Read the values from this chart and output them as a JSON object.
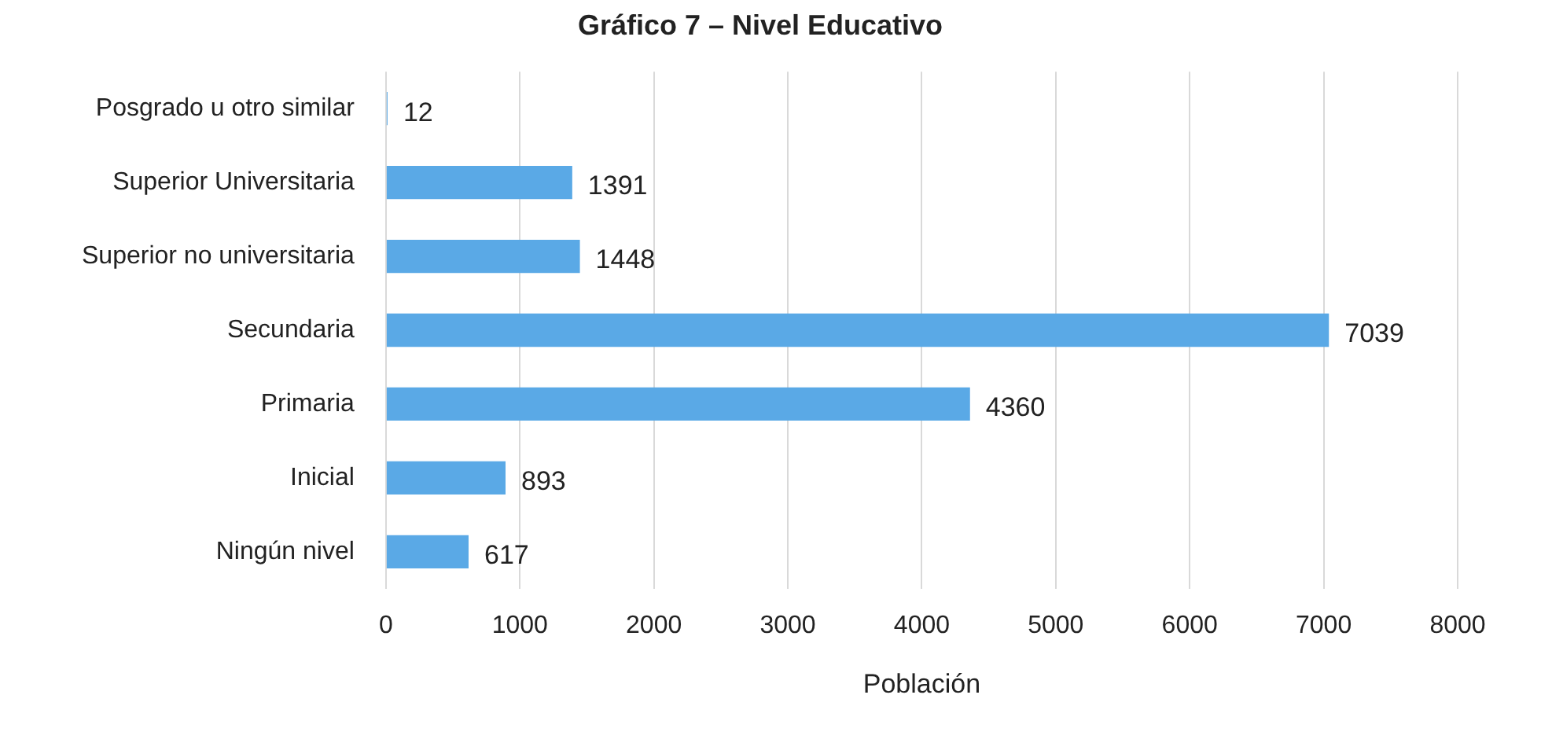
{
  "chart_data": {
    "type": "bar",
    "orientation": "horizontal",
    "title": "Gráfico 7 – Nivel Educativo",
    "xlabel": "Población",
    "categories": [
      "Posgrado u otro similar",
      "Superior Universitaria",
      "Superior no universitaria",
      "Secundaria",
      "Primaria",
      "Inicial",
      "Ningún nivel"
    ],
    "values": [
      12,
      1391,
      1448,
      7039,
      4360,
      893,
      617
    ],
    "color": "#5aa9e6",
    "xlim": [
      0,
      8000
    ],
    "xticks": [
      0,
      1000,
      2000,
      3000,
      4000,
      5000,
      6000,
      7000,
      8000
    ],
    "grid": "x",
    "data_labels": true,
    "legend": false
  }
}
